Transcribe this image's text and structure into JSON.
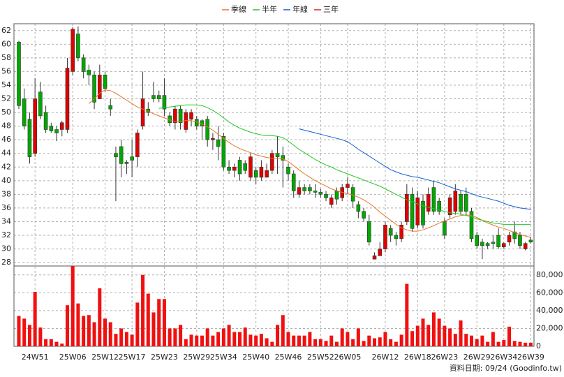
{
  "chart_data": {
    "type": "candlestick",
    "categories": [
      null,
      null,
      null,
      "24W51",
      null,
      null,
      null,
      null,
      null,
      null,
      "25W06",
      null,
      null,
      null,
      null,
      null,
      "25W12",
      null,
      null,
      null,
      null,
      "25W17",
      null,
      null,
      null,
      null,
      null,
      "25W23",
      null,
      null,
      null,
      null,
      null,
      "25W29",
      null,
      null,
      null,
      null,
      "25W34",
      null,
      null,
      null,
      null,
      null,
      "25W40",
      null,
      null,
      null,
      null,
      null,
      "25W46",
      null,
      null,
      null,
      null,
      null,
      "25W52",
      null,
      null,
      null,
      null,
      "26W05",
      null,
      null,
      null,
      null,
      null,
      null,
      "26W12",
      null,
      null,
      null,
      null,
      null,
      "26W18",
      null,
      null,
      null,
      null,
      "26W23",
      null,
      null,
      null,
      null,
      null,
      "26W29",
      null,
      null,
      null,
      null,
      "26W34",
      null,
      null,
      null,
      null,
      "26W39"
    ],
    "open": [
      60.3,
      52,
      49,
      44,
      53,
      50,
      48,
      47.5,
      47.5,
      47.5,
      56,
      61.5,
      58,
      56.2,
      55.5,
      52,
      55.5,
      51,
      44,
      45,
      42.7,
      43.5,
      43.5,
      48,
      50.5,
      52.5,
      52.5,
      52.5,
      49.5,
      48.5,
      50.5,
      47.5,
      49,
      49,
      48.8,
      49,
      46,
      46,
      46.5,
      42,
      41.5,
      43,
      42.5,
      40.5,
      41.5,
      40.5,
      40.5,
      41.5,
      44,
      43.7,
      42,
      41,
      38,
      39,
      39,
      38.5,
      38.3,
      38,
      36.5,
      38.5,
      37.5,
      39,
      39,
      36.5,
      35.5,
      34,
      28.5,
      29,
      30,
      33,
      32,
      31.5,
      34,
      38,
      33.5,
      37,
      35.5,
      39,
      37,
      34,
      35,
      35.5,
      38,
      38,
      35.5,
      32,
      31,
      30.8,
      31,
      32,
      30.3,
      31,
      32.5,
      32,
      30,
      31.3
    ],
    "high": [
      60.5,
      53.5,
      50,
      55,
      54.5,
      51,
      48.5,
      48,
      48.8,
      58,
      62.5,
      62.6,
      58.5,
      57,
      56,
      57,
      56,
      52,
      45,
      46,
      43,
      46,
      47.5,
      56,
      51.5,
      54.5,
      53.2,
      55,
      50,
      51,
      51,
      50.5,
      50.5,
      49.5,
      49,
      49.5,
      47,
      48,
      47,
      43,
      42.5,
      43.5,
      43,
      44,
      42,
      43,
      42.5,
      44.5,
      46.5,
      45,
      42.5,
      41.5,
      40,
      39.5,
      39.5,
      39.5,
      38.8,
      38.5,
      38,
      39,
      39.5,
      40.5,
      39.5,
      37,
      36,
      35,
      29.5,
      31,
      34,
      33.5,
      32.5,
      34,
      39.5,
      39,
      38.5,
      38,
      39,
      40,
      37.5,
      34.5,
      38,
      39.5,
      38.5,
      39,
      36,
      32.5,
      31.5,
      31,
      32,
      33,
      31,
      32.5,
      34,
      32.5,
      31,
      31.8
    ],
    "low": [
      50.5,
      47.5,
      42.5,
      43.5,
      49,
      47,
      47,
      45.8,
      46.5,
      47,
      55.5,
      57.5,
      55,
      54,
      50.5,
      52,
      53,
      49.5,
      37,
      40.5,
      41,
      40.5,
      42,
      47.5,
      49.5,
      51.5,
      51.5,
      49.5,
      48,
      47.5,
      47.5,
      47,
      48,
      47.5,
      46,
      45,
      44.5,
      43,
      41.5,
      41,
      40.5,
      40,
      41,
      40,
      39.5,
      40,
      40.5,
      41,
      41,
      39,
      40,
      37.5,
      37.5,
      38,
      38,
      37.5,
      37.5,
      37,
      36,
      36.5,
      37,
      38,
      36,
      34.5,
      34,
      30.5,
      28.5,
      29,
      29.5,
      31,
      30.5,
      31,
      33.5,
      32.5,
      33,
      33,
      35,
      35,
      35,
      31.5,
      34.5,
      35,
      35,
      35,
      31,
      30,
      28.5,
      30,
      30,
      30,
      30,
      30.5,
      30.8,
      30,
      29.8,
      30.8
    ],
    "close": [
      51,
      48,
      43.5,
      52,
      49.5,
      47.5,
      47.3,
      47,
      48.5,
      56.5,
      62.2,
      58,
      56,
      55.5,
      51.5,
      55.5,
      53.5,
      50.5,
      43.5,
      42.5,
      42.5,
      43,
      47,
      52,
      50,
      52,
      52,
      50.5,
      48.5,
      50.5,
      48.5,
      50,
      50,
      48,
      48,
      46,
      46.2,
      45,
      42,
      41.5,
      42,
      41,
      41.5,
      43.5,
      40.5,
      42,
      41.5,
      44,
      43.5,
      43,
      41,
      38.5,
      39,
      38.5,
      38.5,
      38.3,
      38,
      37.5,
      37.5,
      37.3,
      39,
      39.5,
      37,
      35.5,
      34.5,
      31,
      29,
      30,
      33.5,
      32,
      31.5,
      33.5,
      38,
      33,
      37.5,
      33.5,
      38,
      35.5,
      35.5,
      32,
      37.5,
      38.5,
      35.5,
      35.5,
      31.5,
      30.5,
      30.5,
      30.5,
      30.8,
      30.3,
      30.8,
      32,
      31.5,
      30.5,
      30.8,
      31
    ],
    "up_color": "#e00000",
    "down_color": "#00a800",
    "series": [
      {
        "name": "季線",
        "color": "#e8742a",
        "values": [
          null,
          null,
          null,
          null,
          null,
          null,
          null,
          null,
          null,
          null,
          null,
          null,
          null,
          51.3,
          52,
          52.8,
          53.3,
          53.2,
          52.8,
          52.3,
          51.8,
          51.3,
          50.8,
          50.5,
          50.2,
          49.8,
          49.5,
          49.2,
          48.9,
          48.7,
          48.7,
          48.8,
          48.8,
          48.6,
          48.3,
          47.9,
          47.4,
          46.8,
          46.2,
          45.6,
          45.1,
          44.7,
          44.4,
          44.1,
          43.8,
          43.6,
          43.4,
          43.3,
          43.3,
          43.2,
          42.8,
          42.2,
          41.6,
          41.0,
          40.5,
          40.0,
          39.6,
          39.2,
          38.8,
          38.5,
          38.3,
          38.1,
          37.9,
          37.6,
          37.2,
          36.7,
          36.1,
          35.4,
          34.8,
          34.2,
          33.6,
          33.1,
          32.8,
          32.6,
          32.6,
          32.8,
          33.1,
          33.4,
          33.8,
          34.1,
          34.4,
          34.7,
          34.9,
          35.0,
          34.9,
          34.6,
          34.2,
          33.8,
          33.5,
          33.2,
          33.0,
          32.7,
          32.4,
          32.1,
          31.9,
          31.7
        ]
      },
      {
        "name": "半年",
        "color": "#20c820",
        "values": [
          null,
          null,
          null,
          null,
          null,
          null,
          null,
          null,
          null,
          null,
          null,
          null,
          null,
          null,
          null,
          null,
          null,
          null,
          null,
          null,
          null,
          null,
          null,
          null,
          null,
          null,
          50.6,
          50.7,
          50.8,
          50.9,
          51,
          51.1,
          51.1,
          51.1,
          51.0,
          50.7,
          50.3,
          49.8,
          49.2,
          48.6,
          48.1,
          47.7,
          47.4,
          47.1,
          46.9,
          46.7,
          46.6,
          46.6,
          46.5,
          46.3,
          45.8,
          45.2,
          44.6,
          44.1,
          43.6,
          43.1,
          42.7,
          42.3,
          42.0,
          41.6,
          41.3,
          41.0,
          40.7,
          40.4,
          40.1,
          39.8,
          39.5,
          39.2,
          38.8,
          38.4,
          38.0,
          37.6,
          37.2,
          36.9,
          36.6,
          36.3,
          36.1,
          35.9,
          35.7,
          35.5,
          35.3,
          35.2,
          35.1,
          34.9,
          34.7,
          34.4,
          34.2,
          34.0,
          33.8,
          33.7,
          33.6,
          33.6,
          33.6,
          33.6,
          33.6,
          33.6
        ]
      },
      {
        "name": "年線",
        "color": "#1060d0",
        "values": [
          null,
          null,
          null,
          null,
          null,
          null,
          null,
          null,
          null,
          null,
          null,
          null,
          null,
          null,
          null,
          null,
          null,
          null,
          null,
          null,
          null,
          null,
          null,
          null,
          null,
          null,
          null,
          null,
          null,
          null,
          null,
          null,
          null,
          null,
          null,
          null,
          null,
          null,
          null,
          null,
          null,
          null,
          null,
          null,
          null,
          null,
          null,
          null,
          null,
          null,
          null,
          null,
          47.6,
          47.4,
          47.2,
          47.0,
          46.8,
          46.6,
          46.4,
          46.2,
          46.0,
          45.7,
          45.2,
          44.6,
          44.1,
          43.6,
          43.1,
          42.6,
          42.1,
          41.6,
          41.3,
          41.0,
          40.8,
          40.6,
          40.5,
          40.3,
          40.1,
          39.9,
          39.7,
          39.4,
          39.1,
          38.8,
          38.6,
          38.4,
          38.1,
          37.8,
          37.6,
          37.4,
          37.2,
          37.0,
          36.7,
          36.4,
          36.2,
          36.0,
          35.9,
          35.8
        ]
      },
      {
        "name": "三年",
        "color": "#e02020",
        "values": [
          null,
          null,
          null,
          null,
          null,
          null,
          null,
          null,
          null,
          null,
          null,
          null,
          null,
          null,
          null,
          null,
          null,
          null,
          null,
          null,
          null,
          null,
          null,
          null,
          null,
          null,
          null,
          null,
          null,
          null,
          null,
          null,
          null,
          null,
          null,
          null,
          null,
          null,
          null,
          null,
          null,
          null,
          null,
          null,
          null,
          null,
          null,
          null,
          null,
          null,
          null,
          null,
          null,
          null,
          null,
          null,
          null,
          null,
          null,
          null,
          null,
          null,
          null,
          null,
          null,
          null,
          null,
          null,
          null,
          null,
          null,
          null,
          null,
          null,
          null,
          null,
          null,
          null,
          null,
          null,
          null,
          null,
          null,
          null,
          null,
          null,
          null,
          null,
          null,
          null,
          null,
          null,
          null,
          null,
          null,
          null
        ]
      }
    ],
    "ylim": [
      27.5,
      63
    ],
    "yticks": [
      28,
      30,
      32,
      34,
      36,
      38,
      40,
      42,
      44,
      46,
      48,
      50,
      52,
      54,
      56,
      58,
      60,
      62
    ],
    "grid": true,
    "volume": {
      "color": "#f01010",
      "values": [
        34000,
        31000,
        24000,
        61000,
        21000,
        8000,
        8000,
        5000,
        3000,
        46000,
        90000,
        48000,
        34000,
        35000,
        27000,
        65000,
        31000,
        27000,
        14000,
        20000,
        16000,
        13000,
        49000,
        80000,
        59000,
        38000,
        53000,
        53000,
        20000,
        20000,
        24000,
        8000,
        13000,
        12000,
        12000,
        20000,
        12000,
        16000,
        20000,
        24000,
        16000,
        16000,
        21000,
        13000,
        12000,
        14000,
        9000,
        5000,
        24000,
        35000,
        16000,
        12000,
        12000,
        12000,
        16000,
        8000,
        8000,
        6000,
        12000,
        5000,
        20000,
        16000,
        8000,
        20000,
        6000,
        12000,
        9000,
        10000,
        16000,
        8000,
        5000,
        13000,
        70000,
        17000,
        23000,
        31000,
        24000,
        38000,
        31000,
        23000,
        20000,
        14000,
        29000,
        14000,
        12000,
        8000,
        12000,
        5000,
        16000,
        5000,
        7000,
        22000,
        6000,
        5000,
        4000,
        4000
      ],
      "ylim": [
        0,
        90000
      ],
      "yticks": [
        0,
        {
          "value": 20000,
          "label": "20,000"
        },
        {
          "value": 40000,
          "label": "40,000"
        },
        {
          "value": 60000,
          "label": "60,000"
        },
        {
          "value": 80000,
          "label": "80,000"
        }
      ]
    },
    "footer": "資料日期: 09/24 (Goodinfo.tw)"
  }
}
